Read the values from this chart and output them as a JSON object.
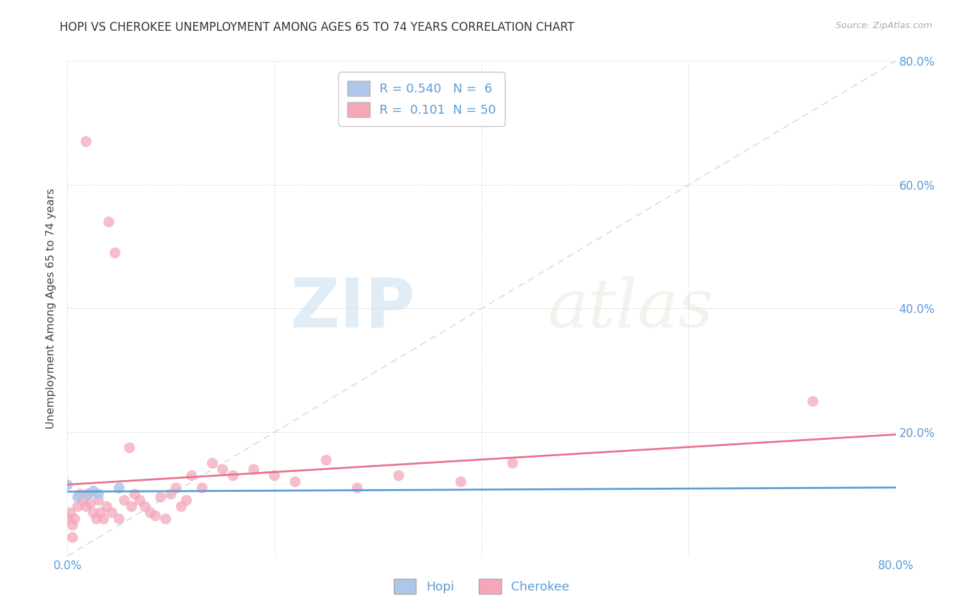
{
  "title": "HOPI VS CHEROKEE UNEMPLOYMENT AMONG AGES 65 TO 74 YEARS CORRELATION CHART",
  "source": "Source: ZipAtlas.com",
  "ylabel": "Unemployment Among Ages 65 to 74 years",
  "xlim": [
    0.0,
    0.8
  ],
  "ylim": [
    0.0,
    0.8
  ],
  "xticks": [
    0.0,
    0.2,
    0.4,
    0.6,
    0.8
  ],
  "yticks": [
    0.0,
    0.2,
    0.4,
    0.6,
    0.8
  ],
  "xticklabels": [
    "0.0%",
    "",
    "",
    "",
    "80.0%"
  ],
  "yticklabels_right": [
    "",
    "20.0%",
    "40.0%",
    "60.0%",
    "80.0%"
  ],
  "title_color": "#333333",
  "axis_color": "#5b9bd5",
  "source_color": "#aaaaaa",
  "hopi_color": "#aec6e8",
  "cherokee_color": "#f4a7b9",
  "hopi_line_color": "#5b9bd5",
  "cherokee_line_color": "#e8728a",
  "diagonal_color": "#c8d8e8",
  "legend_hopi_r": "0.540",
  "legend_hopi_n": " 6",
  "legend_cherokee_r": "0.101",
  "legend_cherokee_n": "50",
  "watermark_zip": "ZIP",
  "watermark_atlas": "atlas",
  "hopi_x": [
    0.0,
    0.01,
    0.02,
    0.025,
    0.03,
    0.05
  ],
  "hopi_y": [
    0.115,
    0.095,
    0.1,
    0.105,
    0.1,
    0.11
  ],
  "cherokee_x": [
    0.018,
    0.0,
    0.003,
    0.005,
    0.007,
    0.01,
    0.012,
    0.015,
    0.018,
    0.02,
    0.022,
    0.025,
    0.028,
    0.03,
    0.032,
    0.035,
    0.038,
    0.04,
    0.043,
    0.046,
    0.05,
    0.055,
    0.06,
    0.062,
    0.065,
    0.07,
    0.075,
    0.08,
    0.085,
    0.09,
    0.095,
    0.1,
    0.105,
    0.11,
    0.115,
    0.12,
    0.13,
    0.14,
    0.15,
    0.16,
    0.18,
    0.2,
    0.22,
    0.25,
    0.28,
    0.32,
    0.38,
    0.43,
    0.72,
    0.005
  ],
  "cherokee_y": [
    0.67,
    0.06,
    0.07,
    0.05,
    0.06,
    0.08,
    0.1,
    0.09,
    0.08,
    0.1,
    0.085,
    0.07,
    0.06,
    0.09,
    0.07,
    0.06,
    0.08,
    0.54,
    0.07,
    0.49,
    0.06,
    0.09,
    0.175,
    0.08,
    0.1,
    0.09,
    0.08,
    0.07,
    0.065,
    0.095,
    0.06,
    0.1,
    0.11,
    0.08,
    0.09,
    0.13,
    0.11,
    0.15,
    0.14,
    0.13,
    0.14,
    0.13,
    0.12,
    0.155,
    0.11,
    0.13,
    0.12,
    0.15,
    0.25,
    0.03
  ],
  "background_color": "#ffffff",
  "grid_color": "#dddddd"
}
